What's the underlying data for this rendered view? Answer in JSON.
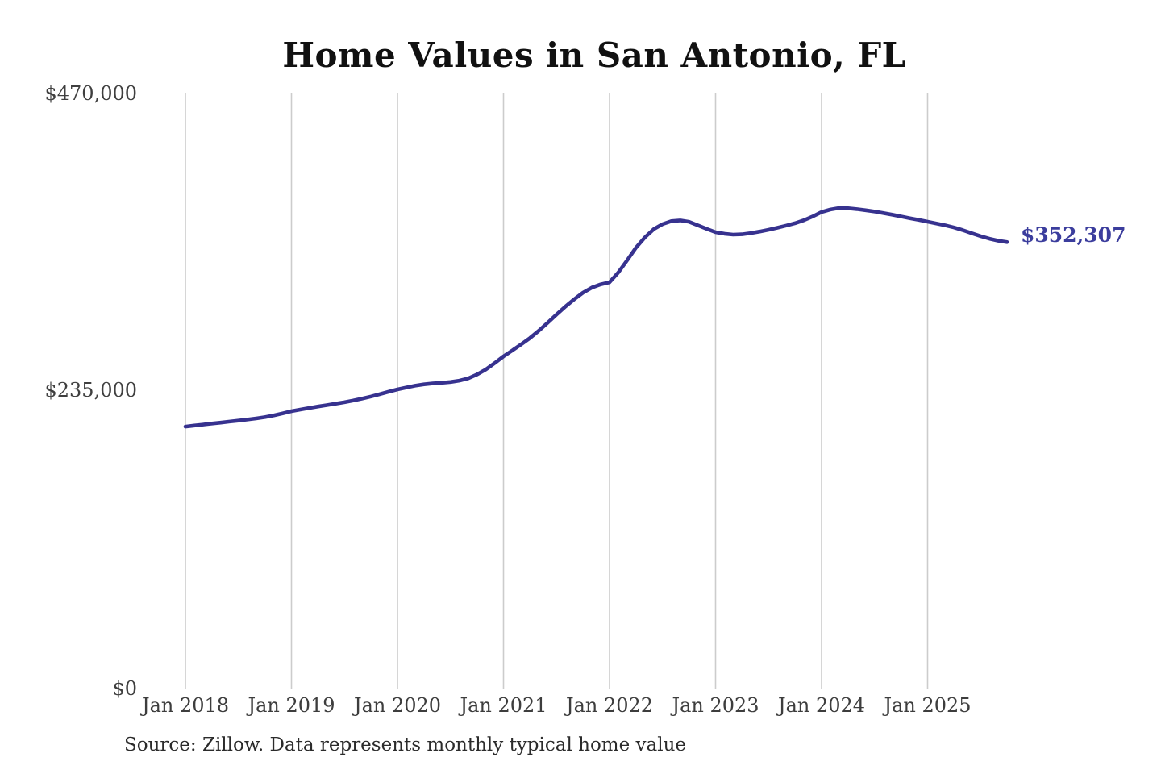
{
  "chart": {
    "title": "Home Values in San Antonio, FL",
    "source": "Source: Zillow. Data represents monthly typical home value",
    "end_label": "$352,307",
    "colors": {
      "line": "#37328f",
      "end_label": "#3b3d9d",
      "gridline": "#cccccc",
      "axis_text": "#3d3d3d",
      "title_text": "#111111",
      "source_text": "#2b2b2b",
      "background": "#ffffff"
    }
  },
  "chart_data": {
    "type": "line",
    "title": "Home Values in San Antonio, FL",
    "xlabel": "",
    "ylabel": "",
    "ylim": [
      0,
      470000
    ],
    "grid": "vertical-only",
    "legend": "none",
    "y_tick_labels": [
      "$470,000",
      "$235,000",
      "$0"
    ],
    "x_tick_labels": [
      "Jan 2018",
      "Jan 2019",
      "Jan 2020",
      "Jan 2021",
      "Jan 2022",
      "Jan 2023",
      "Jan 2024",
      "Jan 2025"
    ],
    "latest_value": 352307,
    "latest_value_label": "$352,307",
    "x": [
      "2018-01",
      "2018-02",
      "2018-03",
      "2018-04",
      "2018-05",
      "2018-06",
      "2018-07",
      "2018-08",
      "2018-09",
      "2018-10",
      "2018-11",
      "2018-12",
      "2019-01",
      "2019-02",
      "2019-03",
      "2019-04",
      "2019-05",
      "2019-06",
      "2019-07",
      "2019-08",
      "2019-09",
      "2019-10",
      "2019-11",
      "2019-12",
      "2020-01",
      "2020-02",
      "2020-03",
      "2020-04",
      "2020-05",
      "2020-06",
      "2020-07",
      "2020-08",
      "2020-09",
      "2020-10",
      "2020-11",
      "2020-12",
      "2021-01",
      "2021-02",
      "2021-03",
      "2021-04",
      "2021-05",
      "2021-06",
      "2021-07",
      "2021-08",
      "2021-09",
      "2021-10",
      "2021-11",
      "2021-12",
      "2022-01",
      "2022-02",
      "2022-03",
      "2022-04",
      "2022-05",
      "2022-06",
      "2022-07",
      "2022-08",
      "2022-09",
      "2022-10",
      "2022-11",
      "2022-12",
      "2023-01",
      "2023-02",
      "2023-03",
      "2023-04",
      "2023-05",
      "2023-06",
      "2023-07",
      "2023-08",
      "2023-09",
      "2023-10",
      "2023-11",
      "2023-12",
      "2024-01",
      "2024-02",
      "2024-03",
      "2024-04",
      "2024-05",
      "2024-06",
      "2024-07",
      "2024-08",
      "2024-09",
      "2024-10",
      "2024-11",
      "2024-12",
      "2025-01",
      "2025-02",
      "2025-03",
      "2025-04",
      "2025-05",
      "2025-06",
      "2025-07",
      "2025-08",
      "2025-09",
      "2025-10"
    ],
    "series": [
      {
        "name": "Monthly typical home value",
        "values": [
          207000,
          207800,
          208600,
          209400,
          210100,
          210900,
          211700,
          212500,
          213400,
          214400,
          215800,
          217400,
          219100,
          220400,
          221600,
          222800,
          223900,
          225000,
          226200,
          227500,
          229000,
          230700,
          232500,
          234400,
          236300,
          237800,
          239200,
          240300,
          241000,
          241500,
          242100,
          243200,
          245000,
          248000,
          252000,
          257000,
          262300,
          267000,
          271800,
          276800,
          282500,
          288800,
          295300,
          301500,
          307300,
          312500,
          316500,
          319000,
          320700,
          328500,
          338000,
          348000,
          356000,
          362500,
          366500,
          368800,
          369400,
          368300,
          365500,
          362700,
          360100,
          358900,
          358200,
          358500,
          359400,
          360600,
          362000,
          363600,
          365300,
          367200,
          369500,
          372500,
          376000,
          378000,
          379200,
          379000,
          378300,
          377400,
          376400,
          375200,
          373900,
          372500,
          371100,
          369800,
          368400,
          367000,
          365500,
          363800,
          361700,
          359300,
          357000,
          355000,
          353400,
          352307
        ]
      }
    ]
  }
}
